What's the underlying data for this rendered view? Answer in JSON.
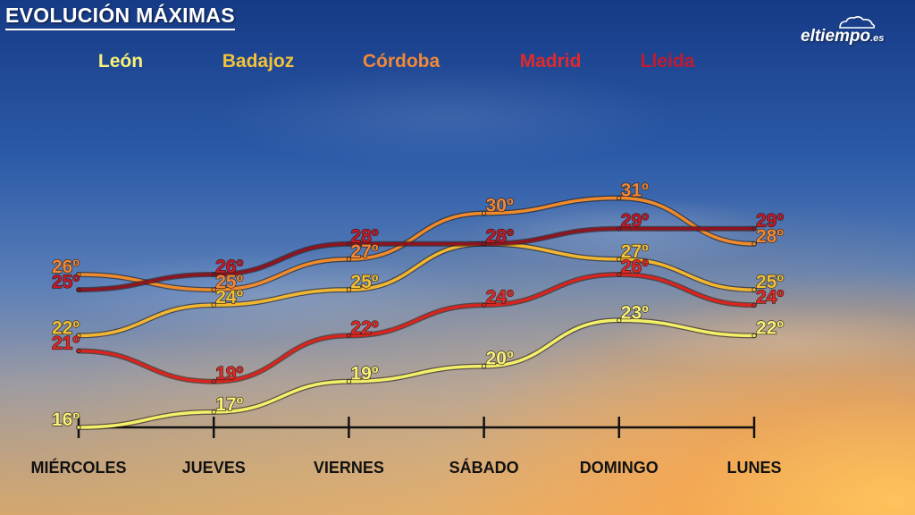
{
  "title": "EVOLUCIÓN MÁXIMAS",
  "logo": {
    "name": "eltiempo",
    "suffix": ".es",
    "icon": "cloud-icon"
  },
  "chart_data": {
    "type": "line",
    "categories": [
      "MIÉRCOLES",
      "JUEVES",
      "VIERNES",
      "SÁBADO",
      "DOMINGO",
      "LUNES"
    ],
    "unit": "º",
    "series": [
      {
        "name": "León",
        "color": "#f4f06a",
        "label_color": "#f7f27a",
        "values": [
          16,
          17,
          19,
          20,
          23,
          22
        ]
      },
      {
        "name": "Badajoz",
        "color": "#f2b630",
        "label_color": "#f2c23a",
        "values": [
          22,
          24,
          25,
          28,
          27,
          25
        ]
      },
      {
        "name": "Córdoba",
        "color": "#f08a2a",
        "label_color": "#f0883a",
        "values": [
          26,
          25,
          27,
          30,
          31,
          28
        ]
      },
      {
        "name": "Madrid",
        "color": "#d8241e",
        "label_color": "#e02a2a",
        "values": [
          21,
          19,
          22,
          24,
          26,
          24
        ]
      },
      {
        "name": "Lleida",
        "color": "#8e1420",
        "label_color": "#c21a2e",
        "values": [
          25,
          26,
          28,
          28,
          29,
          29
        ]
      }
    ],
    "ylim": [
      15,
      32
    ],
    "legend": "top"
  }
}
